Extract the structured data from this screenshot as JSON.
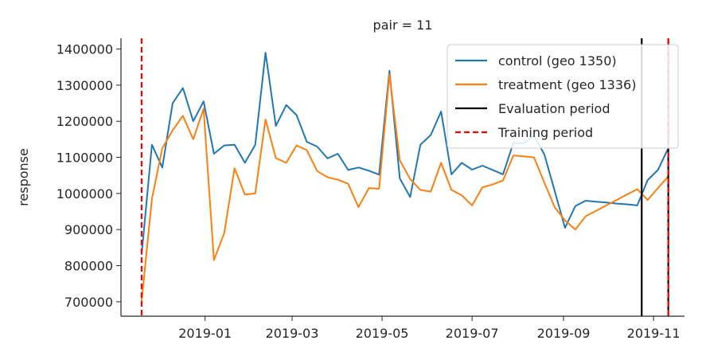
{
  "chart_data": {
    "type": "line",
    "title": "pair = 11",
    "xlabel": "",
    "ylabel": "response",
    "x_ticks": [
      "2019-01",
      "2019-03",
      "2019-05",
      "2019-07",
      "2019-09",
      "2019-11"
    ],
    "y_ticks": [
      700000,
      800000,
      900000,
      1000000,
      1100000,
      1200000,
      1300000,
      1400000
    ],
    "xlim": [
      "2018-11-05",
      "2019-11-22"
    ],
    "ylim": [
      660000,
      1430000
    ],
    "grid": false,
    "legend": {
      "placement": "top-right",
      "entries": [
        {
          "label": "control (geo 1350)",
          "color": "#1f77b4",
          "style": "solid"
        },
        {
          "label": "treatment (geo 1336)",
          "color": "#ff7f0e",
          "style": "solid"
        },
        {
          "label": "Evaluation period",
          "color": "#000000",
          "style": "solid"
        },
        {
          "label": "Training period",
          "color": "#ff0000",
          "style": "dashed"
        }
      ]
    },
    "series": [
      {
        "name": "control (geo 1350)",
        "color": "#1f77b4",
        "x": [
          "2018-11-19",
          "2018-11-26",
          "2018-12-03",
          "2018-12-10",
          "2018-12-17",
          "2018-12-24",
          "2018-12-31",
          "2019-01-07",
          "2019-01-14",
          "2019-01-21",
          "2019-01-28",
          "2019-02-04",
          "2019-02-11",
          "2019-02-18",
          "2019-02-25",
          "2019-03-04",
          "2019-03-11",
          "2019-03-18",
          "2019-03-25",
          "2019-04-01",
          "2019-04-08",
          "2019-04-15",
          "2019-04-22",
          "2019-04-29",
          "2019-05-06",
          "2019-05-13",
          "2019-05-20",
          "2019-05-27",
          "2019-06-03",
          "2019-06-10",
          "2019-06-17",
          "2019-06-24",
          "2019-07-01",
          "2019-07-08",
          "2019-07-15",
          "2019-07-22",
          "2019-07-29",
          "2019-08-05",
          "2019-08-12",
          "2019-08-19",
          "2019-08-26",
          "2019-09-02",
          "2019-09-09",
          "2019-09-16",
          "2019-09-23",
          "2019-09-30",
          "2019-10-07",
          "2019-10-14",
          "2019-10-21",
          "2019-10-28",
          "2019-11-04",
          "2019-11-11"
        ],
        "values": [
          830000,
          1135000,
          1072000,
          1250000,
          1292000,
          1200000,
          1255000,
          1110000,
          1133000,
          1135000,
          1085000,
          1135000,
          1390000,
          1187000,
          1245000,
          1217000,
          1143000,
          1130000,
          1097000,
          1110000,
          1065000,
          1072000,
          1063000,
          1052000,
          1340000,
          1042000,
          990000,
          1135000,
          1162000,
          1227000,
          1053000,
          1085000,
          1066000,
          1077000,
          1065000,
          1053000,
          1140000,
          1139000,
          1160000,
          1108000,
          1007000,
          905000,
          965000,
          980000,
          977000,
          975000,
          972000,
          970000,
          967000,
          1037000,
          1065000,
          1125000
        ]
      },
      {
        "name": "treatment (geo 1336)",
        "color": "#ff7f0e",
        "x": [
          "2018-11-19",
          "2018-11-26",
          "2018-12-03",
          "2018-12-10",
          "2018-12-17",
          "2018-12-24",
          "2018-12-31",
          "2019-01-07",
          "2019-01-14",
          "2019-01-21",
          "2019-01-28",
          "2019-02-04",
          "2019-02-11",
          "2019-02-18",
          "2019-02-25",
          "2019-03-04",
          "2019-03-11",
          "2019-03-18",
          "2019-03-25",
          "2019-04-01",
          "2019-04-08",
          "2019-04-15",
          "2019-04-22",
          "2019-04-29",
          "2019-05-06",
          "2019-05-13",
          "2019-05-20",
          "2019-05-27",
          "2019-06-03",
          "2019-06-10",
          "2019-06-17",
          "2019-06-24",
          "2019-07-01",
          "2019-07-08",
          "2019-07-15",
          "2019-07-22",
          "2019-07-29",
          "2019-08-05",
          "2019-08-12",
          "2019-08-19",
          "2019-08-26",
          "2019-09-02",
          "2019-09-09",
          "2019-09-16",
          "2019-09-23",
          "2019-09-30",
          "2019-10-07",
          "2019-10-14",
          "2019-10-21",
          "2019-10-28",
          "2019-11-04",
          "2019-11-11"
        ],
        "values": [
          700000,
          985000,
          1125000,
          1175000,
          1215000,
          1150000,
          1235000,
          815000,
          890000,
          1070000,
          997000,
          1000000,
          1205000,
          1098000,
          1085000,
          1133000,
          1120000,
          1062000,
          1045000,
          1038000,
          1027000,
          962000,
          1015000,
          1013000,
          1330000,
          1092000,
          1040000,
          1010000,
          1005000,
          1085000,
          1010000,
          995000,
          967000,
          1017000,
          1025000,
          1036000,
          1105000,
          1103000,
          1100000,
          1030000,
          962000,
          925000,
          900000,
          937000,
          952000,
          967000,
          982000,
          997000,
          1012000,
          982000,
          1015000,
          1047000
        ]
      }
    ],
    "vertical_lines": [
      {
        "x": "2018-11-19",
        "color": "#ff0000",
        "style": "dashed",
        "legend": "Training period"
      },
      {
        "x": "2019-10-24",
        "color": "#000000",
        "style": "solid",
        "legend": "Evaluation period"
      },
      {
        "x": "2019-11-11",
        "color": "#000000",
        "style": "solid",
        "legend": "Evaluation period"
      },
      {
        "x": "2019-11-11",
        "color": "#ff0000",
        "style": "dashed",
        "legend": "Training period"
      }
    ]
  }
}
